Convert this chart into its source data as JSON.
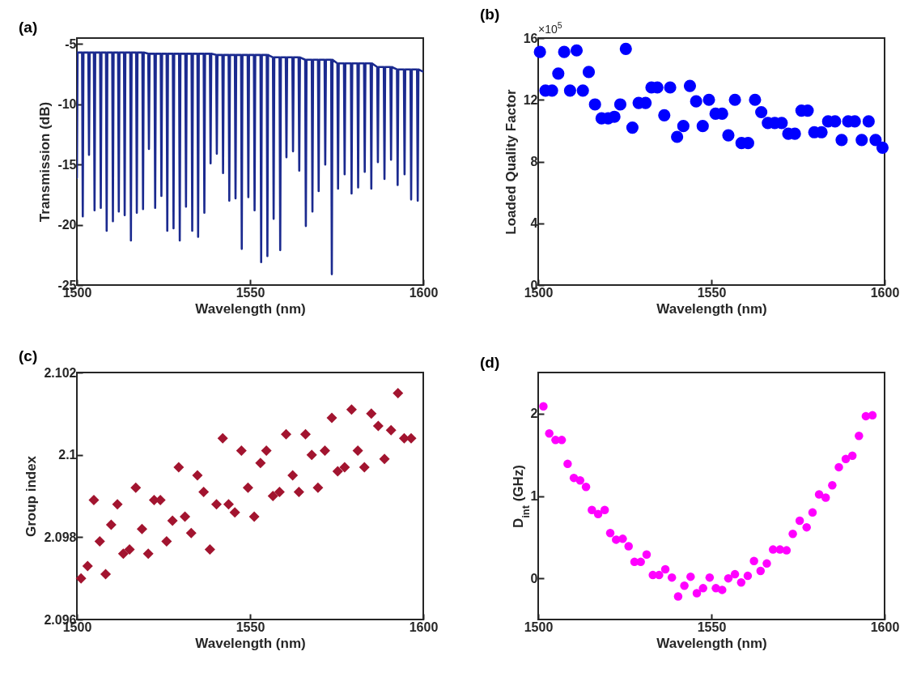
{
  "chart_data": [
    {
      "type": "line",
      "title": "(a)",
      "xlabel": "Wavelength (nm)",
      "ylabel": "Transmission (dB)",
      "xlim": [
        1500,
        1600
      ],
      "xticks": [
        1500,
        1550,
        1600
      ],
      "ylim": [
        -25,
        -4.5
      ],
      "yticks": [
        -25,
        -20,
        -15,
        -10,
        -5
      ],
      "x": [
        1500.0,
        1500.2,
        1501.5,
        1501.7,
        1501.9,
        1503.3,
        1503.5,
        1503.7,
        1504.9,
        1505.1,
        1505.3,
        1506.7,
        1506.9,
        1507.1,
        1508.4,
        1508.6,
        1508.8,
        1510.2,
        1510.4,
        1510.6,
        1511.9,
        1512.1,
        1512.3,
        1513.6,
        1513.8,
        1514.0,
        1515.4,
        1515.6,
        1515.8,
        1517.1,
        1517.3,
        1517.5,
        1518.9,
        1519.1,
        1519.3,
        1520.6,
        1520.8,
        1521.0,
        1522.4,
        1522.6,
        1522.8,
        1524.2,
        1524.4,
        1524.6,
        1525.9,
        1526.1,
        1526.3,
        1527.7,
        1527.9,
        1528.1,
        1529.5,
        1529.7,
        1529.9,
        1531.3,
        1531.5,
        1531.7,
        1533.1,
        1533.3,
        1533.5,
        1534.8,
        1535.0,
        1535.2,
        1536.6,
        1536.8,
        1537.0,
        1538.4,
        1538.6,
        1538.8,
        1540.2,
        1540.4,
        1540.6,
        1542.0,
        1542.2,
        1542.4,
        1543.8,
        1544.0,
        1544.2,
        1545.6,
        1545.8,
        1546.0,
        1547.4,
        1547.6,
        1547.8,
        1549.3,
        1549.5,
        1549.7,
        1551.1,
        1551.3,
        1551.5,
        1553.0,
        1553.2,
        1553.4,
        1554.8,
        1555.0,
        1555.2,
        1556.6,
        1556.8,
        1557.0,
        1558.5,
        1558.7,
        1558.9,
        1560.3,
        1560.5,
        1560.7,
        1562.2,
        1562.4,
        1562.6,
        1564.0,
        1564.2,
        1564.4,
        1565.9,
        1566.1,
        1566.3,
        1567.8,
        1568.0,
        1568.2,
        1569.6,
        1569.8,
        1570.0,
        1571.5,
        1571.7,
        1571.9,
        1573.4,
        1573.6,
        1573.8,
        1575.2,
        1575.4,
        1575.6,
        1577.1,
        1577.3,
        1577.5,
        1579.1,
        1579.3,
        1579.5,
        1581.0,
        1581.2,
        1581.4,
        1582.9,
        1583.1,
        1583.3,
        1584.8,
        1585.0,
        1585.2,
        1586.7,
        1586.9,
        1587.1,
        1588.6,
        1588.8,
        1589.0,
        1590.5,
        1590.7,
        1590.9,
        1592.4,
        1592.6,
        1592.8,
        1594.4,
        1594.6,
        1594.8,
        1596.3,
        1596.5,
        1596.7,
        1598.2,
        1598.4,
        1598.6,
        1600.0
      ],
      "series": [
        {
          "color": "#1b2a8f",
          "values": [
            -16.1,
            -5.7,
            -5.7,
            -19.3,
            -5.7,
            -5.7,
            -14.2,
            -5.7,
            -5.7,
            -18.8,
            -5.7,
            -5.7,
            -18.6,
            -5.7,
            -5.7,
            -20.5,
            -5.7,
            -5.7,
            -19.7,
            -5.7,
            -5.7,
            -18.9,
            -5.7,
            -5.7,
            -19.2,
            -5.7,
            -5.7,
            -21.3,
            -5.7,
            -5.7,
            -19.0,
            -5.7,
            -5.7,
            -18.7,
            -5.7,
            -5.8,
            -13.7,
            -5.8,
            -5.8,
            -18.6,
            -5.8,
            -5.8,
            -17.6,
            -5.8,
            -5.8,
            -20.5,
            -5.8,
            -5.8,
            -20.3,
            -5.8,
            -5.8,
            -21.3,
            -5.8,
            -5.8,
            -18.5,
            -5.8,
            -5.8,
            -20.5,
            -5.8,
            -5.8,
            -21.0,
            -5.8,
            -5.8,
            -19.0,
            -5.8,
            -5.8,
            -14.9,
            -5.8,
            -5.9,
            -14.1,
            -5.9,
            -5.9,
            -15.7,
            -5.9,
            -5.9,
            -18.0,
            -5.9,
            -5.9,
            -17.8,
            -5.9,
            -5.9,
            -22.0,
            -5.9,
            -5.9,
            -17.7,
            -5.9,
            -5.9,
            -18.8,
            -5.9,
            -5.9,
            -23.1,
            -5.9,
            -5.9,
            -22.6,
            -5.9,
            -6.1,
            -19.5,
            -6.1,
            -6.1,
            -22.1,
            -6.1,
            -6.1,
            -14.4,
            -6.1,
            -6.1,
            -13.9,
            -6.1,
            -6.1,
            -15.5,
            -6.1,
            -6.3,
            -20.1,
            -6.3,
            -6.3,
            -18.9,
            -6.3,
            -6.3,
            -17.2,
            -6.3,
            -6.3,
            -15.0,
            -6.3,
            -6.3,
            -24.1,
            -6.3,
            -6.6,
            -17.0,
            -6.6,
            -6.6,
            -15.8,
            -6.6,
            -6.6,
            -17.4,
            -6.6,
            -6.6,
            -16.9,
            -6.6,
            -6.6,
            -15.6,
            -6.6,
            -6.6,
            -17.0,
            -6.6,
            -6.9,
            -14.8,
            -6.9,
            -6.9,
            -16.2,
            -6.9,
            -6.9,
            -14.6,
            -6.9,
            -7.1,
            -16.7,
            -7.1,
            -7.1,
            -15.8,
            -7.1,
            -7.1,
            -17.9,
            -7.1,
            -7.1,
            -18.0,
            -7.1,
            -7.3
          ]
        }
      ]
    },
    {
      "type": "scatter",
      "title": "(b)",
      "xlabel": "Wavelength (nm)",
      "ylabel": "Loaded Quality Factor",
      "annotations": [
        "×10$^{5}$"
      ],
      "marker": "circle",
      "xlim": [
        1500,
        1600
      ],
      "xticks": [
        1500,
        1550,
        1600
      ],
      "ylim": [
        0,
        16
      ],
      "yticks": [
        0,
        4,
        8,
        12,
        16
      ],
      "x": [
        1500.5,
        1502.1,
        1504.0,
        1505.8,
        1507.5,
        1509.2,
        1511.1,
        1512.9,
        1514.6,
        1516.4,
        1518.3,
        1520.2,
        1522.0,
        1523.7,
        1525.3,
        1527.2,
        1529.0,
        1531.0,
        1532.7,
        1534.4,
        1536.4,
        1538.1,
        1540.1,
        1541.9,
        1543.8,
        1545.6,
        1547.5,
        1549.3,
        1551.2,
        1553.1,
        1554.9,
        1556.8,
        1558.7,
        1560.6,
        1562.6,
        1564.4,
        1566.3,
        1568.3,
        1570.3,
        1572.2,
        1574.1,
        1576.0,
        1577.8,
        1579.7,
        1581.8,
        1583.7,
        1585.7,
        1587.6,
        1589.5,
        1591.4,
        1593.4,
        1595.4,
        1597.4,
        1599.4
      ],
      "series": [
        {
          "color": "#0000ff",
          "values": [
            15.1,
            12.6,
            12.6,
            13.7,
            15.1,
            12.6,
            15.2,
            12.6,
            13.8,
            11.7,
            10.8,
            10.8,
            10.9,
            11.7,
            15.3,
            10.2,
            11.8,
            11.8,
            12.8,
            12.8,
            11.0,
            12.8,
            9.6,
            10.3,
            12.9,
            11.9,
            10.3,
            12.0,
            11.1,
            11.1,
            9.7,
            12.0,
            9.2,
            9.2,
            12.0,
            11.2,
            10.5,
            10.5,
            10.5,
            9.8,
            9.8,
            11.3,
            11.3,
            9.9,
            9.9,
            10.6,
            10.6,
            9.4,
            10.6,
            10.6,
            9.4,
            10.6,
            9.4,
            8.9
          ]
        }
      ]
    },
    {
      "type": "scatter",
      "title": "(c)",
      "xlabel": "Wavelength (nm)",
      "ylabel": "Group index",
      "marker": "diamond",
      "xlim": [
        1500,
        1600
      ],
      "xticks": [
        1500,
        1550,
        1600
      ],
      "ylim": [
        2.096,
        2.102
      ],
      "yticks": [
        2.096,
        2.098,
        2.1,
        2.102
      ],
      "x": [
        1501.2,
        1503.1,
        1504.9,
        1506.6,
        1508.3,
        1509.9,
        1511.7,
        1513.4,
        1515.2,
        1517.0,
        1518.8,
        1520.6,
        1522.3,
        1524.1,
        1525.9,
        1527.6,
        1529.4,
        1531.2,
        1533.0,
        1534.8,
        1536.6,
        1538.4,
        1540.3,
        1542.1,
        1543.8,
        1545.6,
        1547.5,
        1549.4,
        1551.2,
        1553.0,
        1554.7,
        1556.6,
        1558.5,
        1560.4,
        1562.3,
        1564.1,
        1566.0,
        1567.8,
        1569.6,
        1571.6,
        1573.6,
        1575.3,
        1577.3,
        1579.3,
        1581.1,
        1583.0,
        1585.0,
        1587.0,
        1588.8,
        1590.7,
        1592.7,
        1594.5,
        1596.5
      ],
      "series": [
        {
          "color": "#a2142f",
          "values": [
            2.097,
            2.0973,
            2.0989,
            2.0979,
            2.0971,
            2.0983,
            2.0988,
            2.0976,
            2.0977,
            2.0992,
            2.0982,
            2.0976,
            2.0989,
            2.0989,
            2.0979,
            2.0984,
            2.0997,
            2.0985,
            2.0981,
            2.0995,
            2.0991,
            2.0977,
            2.0988,
            2.1004,
            2.0988,
            2.0986,
            2.1001,
            2.0992,
            2.0985,
            2.0998,
            2.1001,
            2.099,
            2.0991,
            2.1005,
            2.0995,
            2.0991,
            2.1005,
            2.1,
            2.0992,
            2.1001,
            2.1009,
            2.0996,
            2.0997,
            2.1011,
            2.1001,
            2.0997,
            2.101,
            2.1007,
            2.0999,
            2.1006,
            2.1015,
            2.1004,
            2.1004
          ]
        }
      ]
    },
    {
      "type": "scatter",
      "title": "(d)",
      "xlabel": "Wavelength (nm)",
      "ylabel": "D$_{int}$ (GHz)",
      "marker": "circle",
      "xlim": [
        1500,
        1600
      ],
      "xticks": [
        1500,
        1550,
        1600
      ],
      "ylim": [
        -0.5,
        2.5
      ],
      "yticks": [
        0,
        1,
        2
      ],
      "x": [
        1501.5,
        1503.2,
        1505.0,
        1506.8,
        1508.5,
        1510.3,
        1512.1,
        1513.8,
        1515.5,
        1517.3,
        1519.2,
        1520.8,
        1522.5,
        1524.4,
        1526.1,
        1527.8,
        1529.6,
        1531.3,
        1533.1,
        1534.9,
        1536.7,
        1538.6,
        1540.4,
        1542.2,
        1544.0,
        1545.8,
        1547.6,
        1549.5,
        1551.3,
        1553.1,
        1554.9,
        1556.8,
        1558.6,
        1560.5,
        1562.3,
        1564.2,
        1566.0,
        1567.8,
        1569.8,
        1571.7,
        1573.5,
        1575.5,
        1577.5,
        1579.2,
        1581.1,
        1583.0,
        1584.9,
        1586.8,
        1588.8,
        1590.7,
        1592.6,
        1594.6,
        1596.5
      ],
      "series": [
        {
          "color": "#ff00ff",
          "values": [
            2.09,
            1.76,
            1.68,
            1.68,
            1.39,
            1.22,
            1.19,
            1.11,
            0.83,
            0.78,
            0.83,
            0.55,
            0.47,
            0.48,
            0.39,
            0.2,
            0.2,
            0.29,
            0.04,
            0.04,
            0.11,
            0.01,
            -0.22,
            -0.09,
            0.02,
            -0.18,
            -0.12,
            0.01,
            -0.12,
            -0.14,
            0.0,
            0.05,
            -0.05,
            0.03,
            0.21,
            0.09,
            0.18,
            0.35,
            0.35,
            0.34,
            0.54,
            0.7,
            0.62,
            0.8,
            1.02,
            0.98,
            1.13,
            1.35,
            1.45,
            1.49,
            1.73,
            1.97,
            1.98
          ]
        }
      ]
    }
  ]
}
